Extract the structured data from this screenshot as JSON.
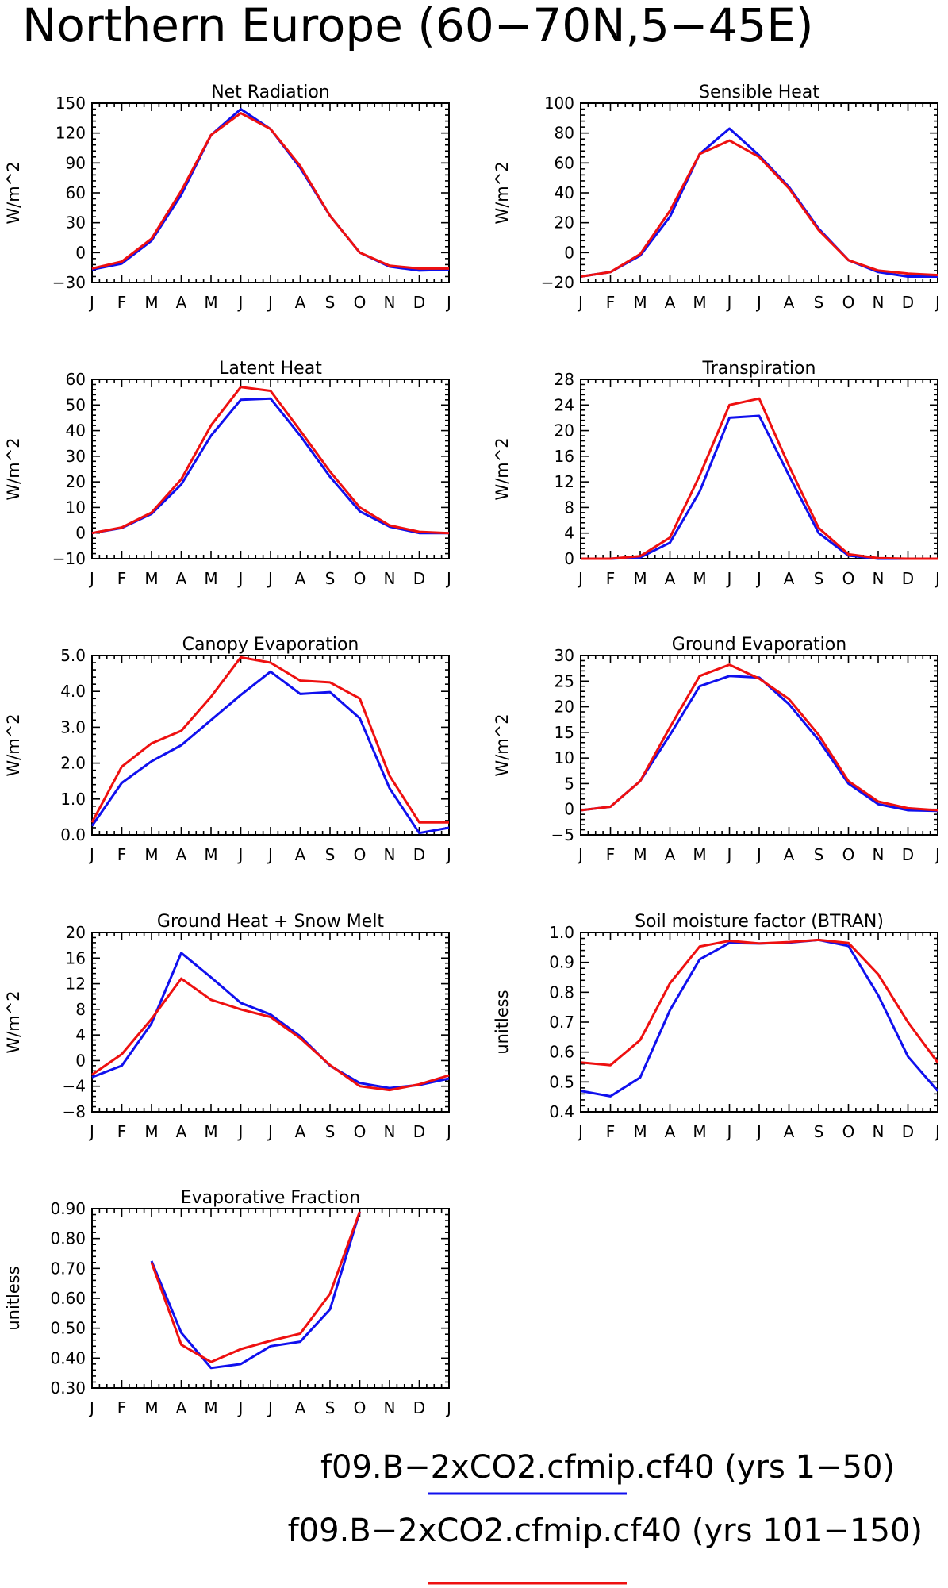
{
  "figure": {
    "title": "Northern Europe (60−70N,5−45E)",
    "legend": [
      {
        "label": "f09.B−2xCO2.cfmip.cf40 (yrs 1−50)",
        "color": "#1010ee"
      },
      {
        "label": "f09.B−2xCO2.cfmip.cf40 (yrs 101−150)",
        "color": "#ee1010"
      }
    ]
  },
  "chart_data": [
    {
      "type": "line",
      "title": "Net Radiation",
      "ylabel": "W/m^2",
      "categories": [
        "J",
        "F",
        "M",
        "A",
        "M",
        "J",
        "J",
        "A",
        "S",
        "O",
        "N",
        "D",
        "J"
      ],
      "ylim": [
        -30,
        150
      ],
      "yticks": [
        "-30",
        "0",
        "30",
        "60",
        "90",
        "120",
        "150"
      ],
      "series": [
        {
          "color": "#1010ee",
          "values": [
            -17,
            -11,
            12,
            58,
            118,
            144,
            124,
            85,
            37,
            0,
            -14,
            -18,
            -17
          ]
        },
        {
          "color": "#ee1010",
          "values": [
            -16,
            -9,
            14,
            62,
            118,
            140,
            124,
            87,
            37,
            0,
            -13,
            -16,
            -16
          ]
        }
      ]
    },
    {
      "type": "line",
      "title": "Sensible Heat",
      "ylabel": "W/m^2",
      "categories": [
        "J",
        "F",
        "M",
        "A",
        "M",
        "J",
        "J",
        "A",
        "S",
        "O",
        "N",
        "D",
        "J"
      ],
      "ylim": [
        -20,
        100
      ],
      "yticks": [
        "-20",
        "0",
        "20",
        "40",
        "60",
        "80",
        "100"
      ],
      "series": [
        {
          "color": "#1010ee",
          "values": [
            -16,
            -13,
            -2,
            24,
            66,
            83,
            65,
            44,
            16,
            -5,
            -13,
            -16,
            -16
          ]
        },
        {
          "color": "#ee1010",
          "values": [
            -16,
            -13,
            -1,
            28,
            66,
            75,
            64,
            43,
            15,
            -5,
            -12,
            -14,
            -15
          ]
        }
      ]
    },
    {
      "type": "line",
      "title": "Latent Heat",
      "ylabel": "W/m^2",
      "categories": [
        "J",
        "F",
        "M",
        "A",
        "M",
        "J",
        "J",
        "A",
        "S",
        "O",
        "N",
        "D",
        "J"
      ],
      "ylim": [
        -10,
        60
      ],
      "yticks": [
        "-10",
        "0",
        "10",
        "20",
        "30",
        "40",
        "50",
        "60"
      ],
      "series": [
        {
          "color": "#1010ee",
          "values": [
            0,
            2,
            7.5,
            19,
            38,
            52,
            52.5,
            38,
            22,
            8.5,
            2.5,
            0,
            0
          ]
        },
        {
          "color": "#ee1010",
          "values": [
            0,
            2.2,
            8,
            21,
            42,
            57,
            55.5,
            40,
            24,
            10,
            3,
            0.5,
            0
          ]
        }
      ]
    },
    {
      "type": "line",
      "title": "Transpiration",
      "ylabel": "W/m^2",
      "categories": [
        "J",
        "F",
        "M",
        "A",
        "M",
        "J",
        "J",
        "A",
        "S",
        "O",
        "N",
        "D",
        "J"
      ],
      "ylim": [
        0,
        28
      ],
      "yticks": [
        "0",
        "4",
        "8",
        "12",
        "16",
        "20",
        "24",
        "28"
      ],
      "series": [
        {
          "color": "#1010ee",
          "values": [
            0,
            0,
            0.2,
            2.5,
            10.5,
            22,
            22.3,
            13,
            4,
            0.5,
            0,
            0,
            0
          ]
        },
        {
          "color": "#ee1010",
          "values": [
            0,
            0,
            0.4,
            3.3,
            13,
            24,
            25,
            14.5,
            4.8,
            0.7,
            0.1,
            0,
            0
          ]
        }
      ]
    },
    {
      "type": "line",
      "title": "Canopy Evaporation",
      "ylabel": "W/m^2",
      "categories": [
        "J",
        "F",
        "M",
        "A",
        "M",
        "J",
        "J",
        "A",
        "S",
        "O",
        "N",
        "D",
        "J"
      ],
      "ylim": [
        0,
        5
      ],
      "yticks": [
        "0.0",
        "1.0",
        "2.0",
        "3.0",
        "4.0",
        "5.0"
      ],
      "series": [
        {
          "color": "#1010ee",
          "values": [
            0.25,
            1.45,
            2.05,
            2.5,
            3.2,
            3.9,
            4.55,
            3.93,
            3.98,
            3.25,
            1.3,
            0.05,
            0.2
          ]
        },
        {
          "color": "#ee1010",
          "values": [
            0.35,
            1.9,
            2.55,
            2.9,
            3.85,
            4.95,
            4.8,
            4.3,
            4.25,
            3.8,
            1.65,
            0.35,
            0.35
          ]
        }
      ]
    },
    {
      "type": "line",
      "title": "Ground Evaporation",
      "ylabel": "W/m^2",
      "categories": [
        "J",
        "F",
        "M",
        "A",
        "M",
        "J",
        "J",
        "A",
        "S",
        "O",
        "N",
        "D",
        "J"
      ],
      "ylim": [
        -5,
        30
      ],
      "yticks": [
        "-5",
        "0",
        "5",
        "10",
        "15",
        "20",
        "25",
        "30"
      ],
      "series": [
        {
          "color": "#1010ee",
          "values": [
            -0.2,
            0.5,
            5.5,
            14.5,
            24,
            26,
            25.7,
            20.5,
            13.5,
            5,
            1,
            -0.2,
            -0.3
          ]
        },
        {
          "color": "#ee1010",
          "values": [
            -0.2,
            0.5,
            5.5,
            16,
            26,
            28.2,
            25.5,
            21.5,
            14.5,
            5.5,
            1.5,
            0.2,
            -0.2
          ]
        }
      ]
    },
    {
      "type": "line",
      "title": "Ground Heat + Snow Melt",
      "ylabel": "W/m^2",
      "categories": [
        "J",
        "F",
        "M",
        "A",
        "M",
        "J",
        "J",
        "A",
        "S",
        "O",
        "N",
        "D",
        "J"
      ],
      "ylim": [
        -8,
        20
      ],
      "yticks": [
        "-8",
        "-4",
        "0",
        "4",
        "8",
        "12",
        "16",
        "20"
      ],
      "series": [
        {
          "color": "#1010ee",
          "values": [
            -2.6,
            -0.8,
            5.8,
            16.8,
            13,
            9,
            7.2,
            3.8,
            -0.8,
            -3.5,
            -4.3,
            -3.8,
            -2.8
          ]
        },
        {
          "color": "#ee1010",
          "values": [
            -2.2,
            1,
            6.5,
            12.8,
            9.5,
            8,
            6.8,
            3.5,
            -0.7,
            -4,
            -4.6,
            -3.7,
            -2.3
          ]
        }
      ]
    },
    {
      "type": "line",
      "title": "Soil moisture factor (BTRAN)",
      "ylabel": "unitless",
      "categories": [
        "J",
        "F",
        "M",
        "A",
        "M",
        "J",
        "J",
        "A",
        "S",
        "O",
        "N",
        "D",
        "J"
      ],
      "ylim": [
        0.4,
        1.0
      ],
      "yticks": [
        "0.4",
        "0.5",
        "0.6",
        "0.7",
        "0.8",
        "0.9",
        "1.0"
      ],
      "series": [
        {
          "color": "#1010ee",
          "values": [
            0.47,
            0.452,
            0.515,
            0.74,
            0.91,
            0.965,
            0.963,
            0.966,
            0.975,
            0.955,
            0.79,
            0.585,
            0.47
          ]
        },
        {
          "color": "#ee1010",
          "values": [
            0.565,
            0.556,
            0.64,
            0.83,
            0.953,
            0.972,
            0.963,
            0.968,
            0.975,
            0.965,
            0.86,
            0.7,
            0.565
          ]
        }
      ]
    },
    {
      "type": "line",
      "title": "Evaporative Fraction",
      "ylabel": "unitless",
      "categories": [
        "J",
        "F",
        "M",
        "A",
        "M",
        "J",
        "J",
        "A",
        "S",
        "O",
        "N",
        "D",
        "J"
      ],
      "ylim": [
        0.3,
        0.9
      ],
      "yticks": [
        "0.30",
        "0.40",
        "0.50",
        "0.60",
        "0.70",
        "0.80",
        "0.90"
      ],
      "series": [
        {
          "color": "#1010ee",
          "values": [
            null,
            null,
            0.725,
            0.485,
            0.367,
            0.38,
            0.44,
            0.455,
            0.563,
            0.89,
            null,
            null,
            null
          ]
        },
        {
          "color": "#ee1010",
          "values": [
            null,
            null,
            0.72,
            0.445,
            0.387,
            0.43,
            0.458,
            0.482,
            0.615,
            0.89,
            null,
            null,
            null
          ]
        }
      ]
    }
  ]
}
